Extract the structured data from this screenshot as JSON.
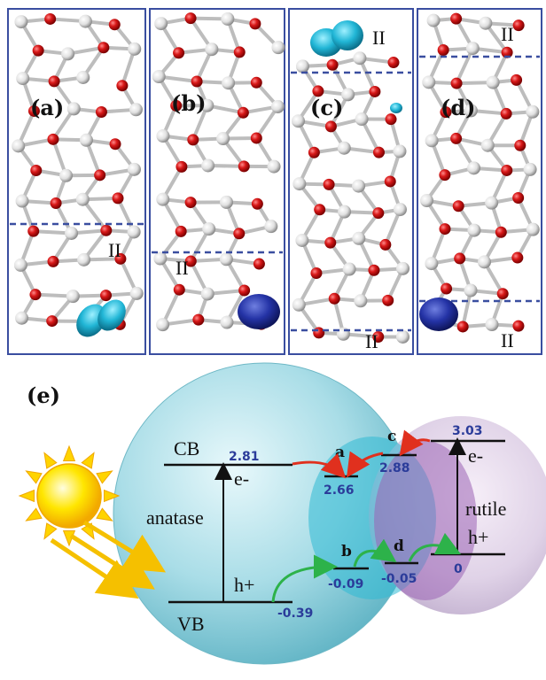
{
  "panels": {
    "a": {
      "label": "(a)",
      "layer": "II"
    },
    "b": {
      "label": "(b)",
      "layer": "II"
    },
    "c": {
      "label": "(c)",
      "layer_top": "II",
      "layer_bottom": "II"
    },
    "d": {
      "label": "(d)",
      "layer_top": "II",
      "layer_bottom": "II"
    }
  },
  "diagram": {
    "label": "(e)",
    "anatase": {
      "name": "anatase",
      "cb": "CB",
      "vb": "VB",
      "cb_value": "2.81",
      "vb_value": "-0.39",
      "electron": "e-",
      "hole": "h+"
    },
    "rutile": {
      "name": "rutile",
      "cb_value": "3.03",
      "vb_value": "0",
      "electron": "e-",
      "hole": "h+"
    },
    "interface_levels": {
      "a": {
        "name": "a",
        "value": "2.66"
      },
      "b": {
        "name": "b",
        "value": "-0.09"
      },
      "c": {
        "name": "c",
        "value": "2.88"
      },
      "d": {
        "name": "d",
        "value": "-0.05"
      }
    }
  },
  "colors": {
    "frame": "#3a4ea0",
    "oxygen": "#c41414",
    "titanium": "#e6e6e6",
    "charge_cyan": "#1fb3d2",
    "charge_blue": "#23309a",
    "electron_arrow": "#e0301e",
    "hole_arrow": "#2db24a",
    "value_text": "#2b3c9a"
  }
}
